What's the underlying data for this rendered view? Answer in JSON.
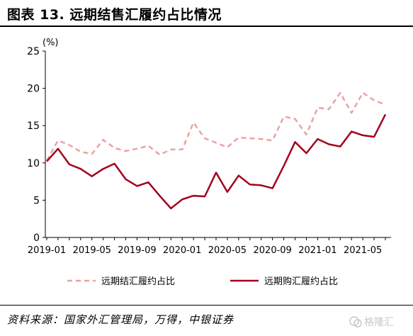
{
  "header": {
    "title": "图表 13. 远期结售汇履约占比情况"
  },
  "source": "资料来源：国家外汇管理局，万得，中银证券",
  "watermark": {
    "text": "格隆汇"
  },
  "colors": {
    "settlement": "#e8a3a3",
    "purchase": "#a3001c",
    "axis": "#000000"
  },
  "chart_data": {
    "type": "line",
    "unit_label": "(%)",
    "ylim": [
      0,
      25
    ],
    "yticks": [
      0,
      5,
      10,
      15,
      20,
      25
    ],
    "x": [
      "2019-01",
      "2019-02",
      "2019-03",
      "2019-04",
      "2019-05",
      "2019-06",
      "2019-07",
      "2019-08",
      "2019-09",
      "2019-10",
      "2019-11",
      "2019-12",
      "2020-01",
      "2020-02",
      "2020-03",
      "2020-04",
      "2020-05",
      "2020-06",
      "2020-07",
      "2020-08",
      "2020-09",
      "2020-10",
      "2020-11",
      "2020-12",
      "2021-01",
      "2021-02",
      "2021-03",
      "2021-04",
      "2021-05",
      "2021-06",
      "2021-07"
    ],
    "xtick_labels": [
      "2019-01",
      "2019-05",
      "2019-09",
      "2020-01",
      "2020-05",
      "2020-09",
      "2021-01",
      "2021-05"
    ],
    "xtick_indices": [
      0,
      4,
      8,
      12,
      16,
      20,
      24,
      28
    ],
    "legend_position": "bottom",
    "grid": false,
    "series": [
      {
        "name": "远期结汇履约占比",
        "style": "dashed",
        "values": [
          10.3,
          13.0,
          12.4,
          11.5,
          11.2,
          13.1,
          12.0,
          11.6,
          11.9,
          12.3,
          11.1,
          11.8,
          11.8,
          15.4,
          13.3,
          12.7,
          12.1,
          13.4,
          13.3,
          13.2,
          13.0,
          16.2,
          15.9,
          13.8,
          17.4,
          17.2,
          19.4,
          16.7,
          19.4,
          18.4,
          17.8
        ]
      },
      {
        "name": "远期购汇履约占比",
        "style": "solid",
        "values": [
          10.2,
          11.9,
          9.8,
          9.2,
          8.2,
          9.2,
          9.9,
          7.8,
          6.9,
          7.4,
          5.6,
          3.9,
          5.1,
          5.6,
          5.5,
          8.7,
          6.1,
          8.3,
          7.1,
          7.0,
          6.6,
          9.6,
          12.8,
          11.3,
          13.2,
          12.5,
          12.2,
          14.2,
          13.7,
          13.5,
          16.5
        ]
      }
    ]
  }
}
